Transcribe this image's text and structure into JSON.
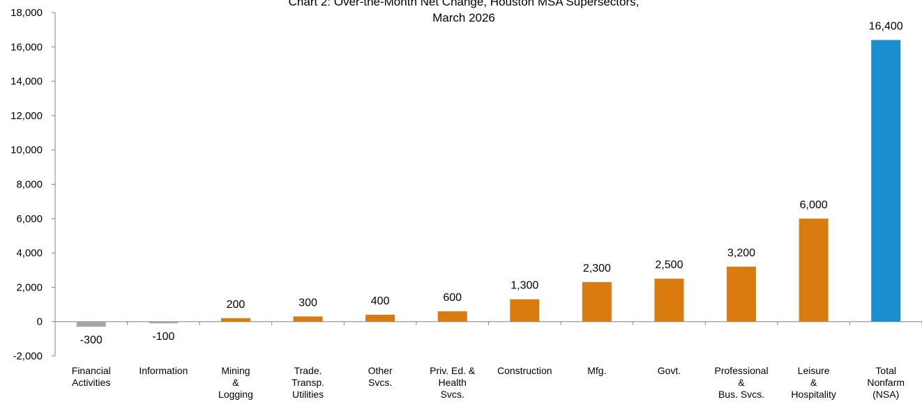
{
  "chart_data": {
    "type": "bar",
    "title_lines": [
      "Chart 2: Over-the-Month Net Change, Houston MSA Supersectors,",
      "March 2026"
    ],
    "xlabel": "",
    "ylabel": "",
    "ylim": [
      -2000,
      18000
    ],
    "yticks": [
      {
        "value": -2000,
        "label": "-2,000"
      },
      {
        "value": 0,
        "label": "0"
      },
      {
        "value": 2000,
        "label": "2,000"
      },
      {
        "value": 4000,
        "label": "4,000"
      },
      {
        "value": 6000,
        "label": "6,000"
      },
      {
        "value": 8000,
        "label": "8,000"
      },
      {
        "value": 10000,
        "label": "10,000"
      },
      {
        "value": 12000,
        "label": "12,000"
      },
      {
        "value": 14000,
        "label": "14,000"
      },
      {
        "value": 16000,
        "label": "16,000"
      },
      {
        "value": 18000,
        "label": "18,000"
      }
    ],
    "grid": false,
    "legend": "none",
    "colors": {
      "negative": "#a6a6a6",
      "positive": "#d97b0f",
      "total": "#1a8fcf",
      "axis": "#808080"
    },
    "categories": [
      {
        "lines": [
          "Financial",
          "Activities"
        ],
        "value": -300,
        "label": "-300",
        "kind": "negative"
      },
      {
        "lines": [
          "Information"
        ],
        "value": -100,
        "label": "-100",
        "kind": "negative"
      },
      {
        "lines": [
          "Mining",
          "&",
          "Logging"
        ],
        "value": 200,
        "label": "200",
        "kind": "positive"
      },
      {
        "lines": [
          "Trade.",
          "Transp.",
          "Utilities"
        ],
        "value": 300,
        "label": "300",
        "kind": "positive"
      },
      {
        "lines": [
          "Other",
          "Svcs."
        ],
        "value": 400,
        "label": "400",
        "kind": "positive"
      },
      {
        "lines": [
          "Priv. Ed. &",
          "Health",
          "Svcs."
        ],
        "value": 600,
        "label": "600",
        "kind": "positive"
      },
      {
        "lines": [
          "Construction"
        ],
        "value": 1300,
        "label": "1,300",
        "kind": "positive"
      },
      {
        "lines": [
          "Mfg."
        ],
        "value": 2300,
        "label": "2,300",
        "kind": "positive"
      },
      {
        "lines": [
          "Govt."
        ],
        "value": 2500,
        "label": "2,500",
        "kind": "positive"
      },
      {
        "lines": [
          "Professional",
          "&",
          "Bus. Svcs."
        ],
        "value": 3200,
        "label": "3,200",
        "kind": "positive"
      },
      {
        "lines": [
          "Leisure",
          "&",
          "Hospitality"
        ],
        "value": 6000,
        "label": "6,000",
        "kind": "positive"
      },
      {
        "lines": [
          "Total",
          "Nonfarm",
          "(NSA)"
        ],
        "value": 16400,
        "label": "16,400",
        "kind": "total"
      }
    ]
  }
}
